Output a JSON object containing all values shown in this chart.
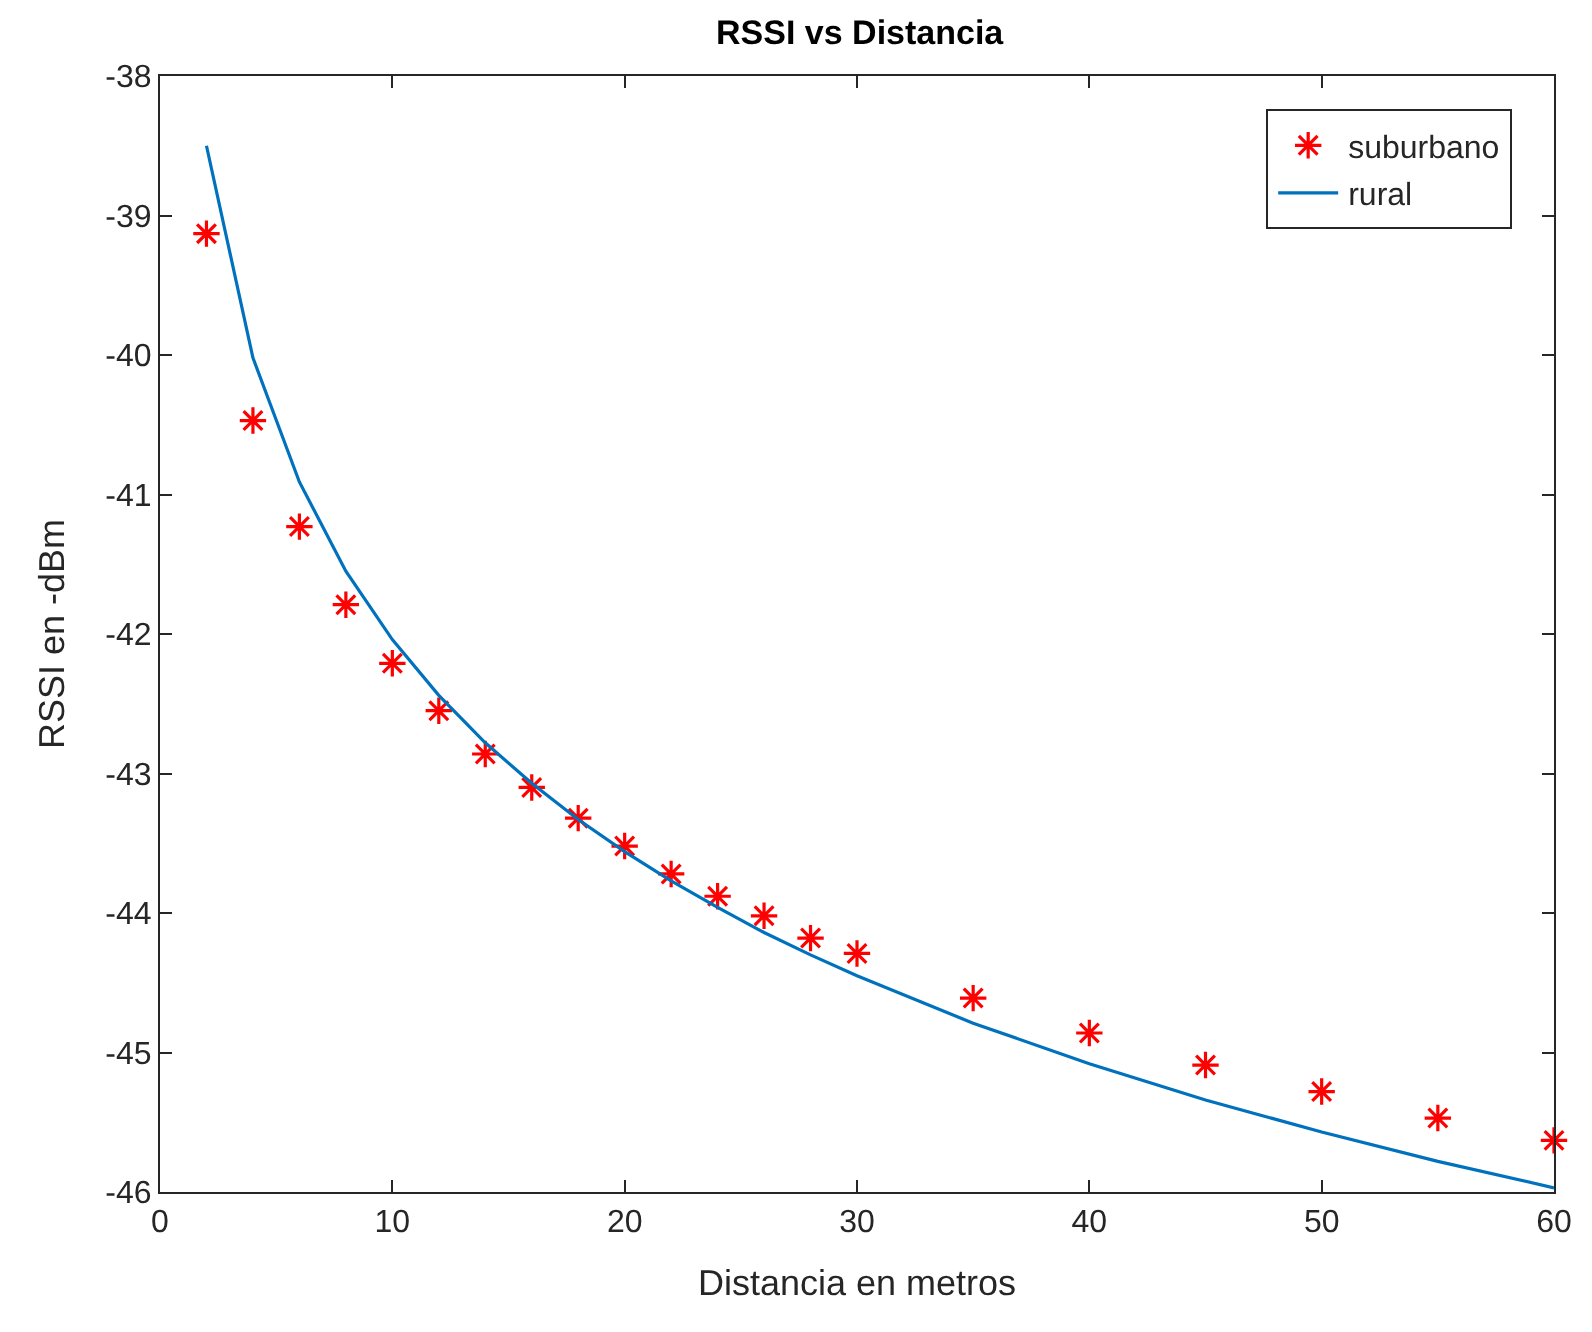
{
  "chart_data": {
    "type": "scatter",
    "title": "RSSI vs Distancia",
    "xlabel": "Distancia en metros",
    "ylabel": "RSSI en -dBm",
    "x": [
      2,
      4,
      6,
      8,
      10,
      12,
      14,
      16,
      18,
      20,
      22,
      24,
      26,
      28,
      30,
      35,
      40,
      45,
      50,
      55,
      60
    ],
    "series": [
      {
        "name": "suburbano",
        "marker": "cross",
        "color": "#ff0000",
        "values": [
          -39.13,
          -40.47,
          -41.23,
          -41.79,
          -42.21,
          -42.55,
          -42.86,
          -43.1,
          -43.32,
          -43.52,
          -43.72,
          -43.88,
          -44.02,
          -44.18,
          -44.29,
          -44.61,
          -44.86,
          -45.09,
          -45.28,
          -45.47,
          -45.63
        ]
      },
      {
        "name": "rural",
        "type": "line",
        "marker": "none",
        "line_style": "solid",
        "color": "#0072bd",
        "values": [
          -38.5,
          -40.02,
          -40.91,
          -41.55,
          -42.04,
          -42.44,
          -42.78,
          -43.07,
          -43.33,
          -43.56,
          -43.77,
          -43.96,
          -44.14,
          -44.3,
          -44.45,
          -44.79,
          -45.08,
          -45.34,
          -45.57,
          -45.78,
          -45.97
        ]
      }
    ],
    "xlim": [
      0,
      60
    ],
    "xticks": [
      0,
      10,
      20,
      30,
      40,
      50,
      60
    ],
    "ylim": [
      -46,
      -38
    ],
    "yticks": [
      -46,
      -45,
      -44,
      -43,
      -42,
      -41,
      -40,
      -39,
      -38
    ],
    "legend": "top right"
  }
}
